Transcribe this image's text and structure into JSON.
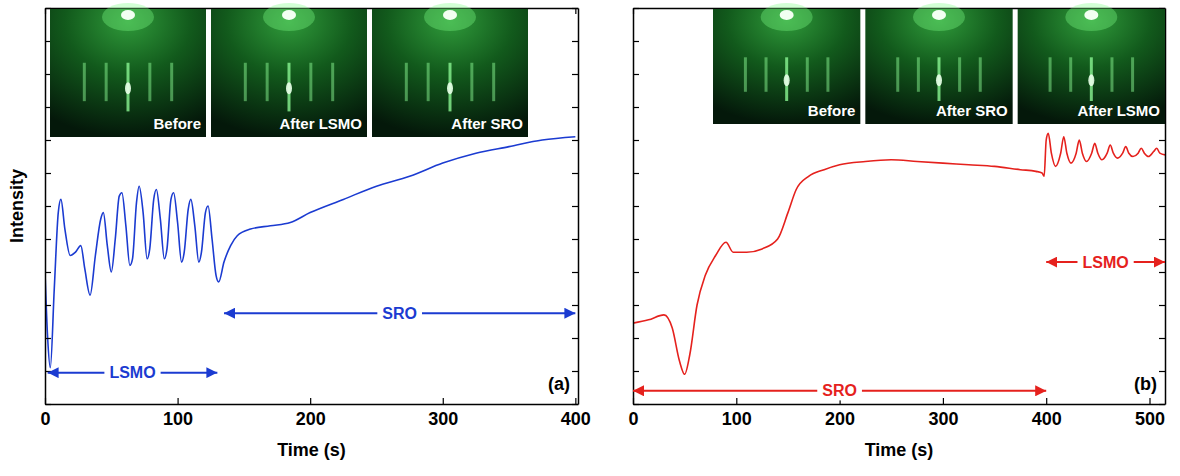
{
  "chart_data": [
    {
      "type": "line",
      "panel": "(a)",
      "x_label": "Time (s)",
      "y_label": "Intensity",
      "xlim": [
        0,
        402
      ],
      "xticks": [
        0,
        100,
        200,
        300,
        400
      ],
      "ylim": [
        0,
        12
      ],
      "yticks": [
        0,
        1,
        2,
        3,
        4,
        5,
        6,
        7,
        8,
        9,
        10,
        11,
        12
      ],
      "tick_labels": "x",
      "color": "#1b3bd1",
      "x": [
        0,
        2,
        4,
        7,
        10,
        12,
        15,
        19,
        23,
        27,
        30,
        34,
        38,
        42,
        44,
        47,
        50,
        53,
        56,
        58,
        61,
        64,
        66,
        69,
        71,
        74,
        77,
        79,
        82,
        84,
        87,
        90,
        92,
        95,
        97,
        100,
        103,
        105,
        108,
        110,
        113,
        116,
        118,
        121,
        123,
        126,
        129,
        131,
        135,
        140,
        145,
        155,
        170,
        185,
        200,
        225,
        250,
        275,
        300,
        325,
        350,
        375,
        400
      ],
      "values": [
        4.0,
        2.0,
        1.1,
        3.5,
        5.8,
        6.2,
        5.3,
        4.5,
        4.6,
        4.8,
        4.1,
        3.3,
        4.5,
        5.6,
        5.8,
        4.8,
        4.0,
        5.0,
        6.3,
        6.4,
        5.4,
        4.2,
        4.4,
        6.1,
        6.6,
        5.8,
        4.4,
        4.7,
        6.2,
        6.5,
        5.6,
        4.4,
        4.7,
        6.2,
        6.4,
        5.5,
        4.3,
        4.6,
        5.9,
        6.2,
        5.4,
        4.3,
        4.6,
        5.8,
        6.0,
        5.0,
        3.9,
        3.7,
        4.3,
        4.8,
        5.1,
        5.3,
        5.4,
        5.5,
        5.8,
        6.2,
        6.6,
        6.9,
        7.3,
        7.6,
        7.8,
        8.0,
        8.1
      ],
      "annotations": [
        {
          "text": "LSMO",
          "x": [
            2,
            130
          ],
          "y": 0.95
        },
        {
          "text": "SRO",
          "x": [
            135,
            400
          ],
          "y": 2.75
        }
      ],
      "insets": [
        "Before",
        "After LSMO",
        "After SRO"
      ]
    },
    {
      "type": "line",
      "panel": "(b)",
      "x_label": "Time (s)",
      "xlim": [
        0,
        515
      ],
      "xticks": [
        0,
        100,
        200,
        300,
        400,
        500
      ],
      "ylim": [
        0,
        12
      ],
      "yticks": [
        0,
        1,
        2,
        3,
        4,
        5,
        6,
        7,
        8,
        9,
        10,
        11,
        12
      ],
      "tick_labels": "x",
      "color": "#e5211d",
      "x": [
        0,
        15,
        30,
        38,
        45,
        50,
        55,
        62,
        70,
        80,
        90,
        97,
        110,
        125,
        140,
        150,
        158,
        170,
        185,
        200,
        225,
        250,
        275,
        300,
        325,
        350,
        375,
        390,
        396,
        398,
        400,
        402,
        405,
        409,
        414,
        417,
        420,
        424,
        429,
        432,
        435,
        439,
        444,
        447,
        450,
        454,
        459,
        462,
        465,
        469,
        474,
        477,
        480,
        484,
        489,
        492,
        495,
        499,
        504,
        507,
        510,
        515
      ],
      "values": [
        2.45,
        2.55,
        2.7,
        2.3,
        1.3,
        0.9,
        1.5,
        3.0,
        3.9,
        4.5,
        4.9,
        4.6,
        4.6,
        4.7,
        5.0,
        5.8,
        6.5,
        6.9,
        7.1,
        7.25,
        7.35,
        7.4,
        7.35,
        7.3,
        7.25,
        7.2,
        7.1,
        7.05,
        7.0,
        6.9,
        8.0,
        8.2,
        7.6,
        7.2,
        7.6,
        8.1,
        7.6,
        7.3,
        7.6,
        8.0,
        7.6,
        7.35,
        7.6,
        7.9,
        7.6,
        7.4,
        7.6,
        7.85,
        7.6,
        7.45,
        7.6,
        7.8,
        7.6,
        7.5,
        7.6,
        7.75,
        7.6,
        7.5,
        7.65,
        7.75,
        7.6,
        7.55
      ],
      "annotations": [
        {
          "text": "SRO",
          "x": [
            0,
            400
          ],
          "y": 0.4
        },
        {
          "text": "LSMO",
          "x": [
            400,
            515
          ],
          "y": 4.3
        }
      ],
      "insets": [
        "Before",
        "After SRO",
        "After LSMO"
      ]
    }
  ]
}
